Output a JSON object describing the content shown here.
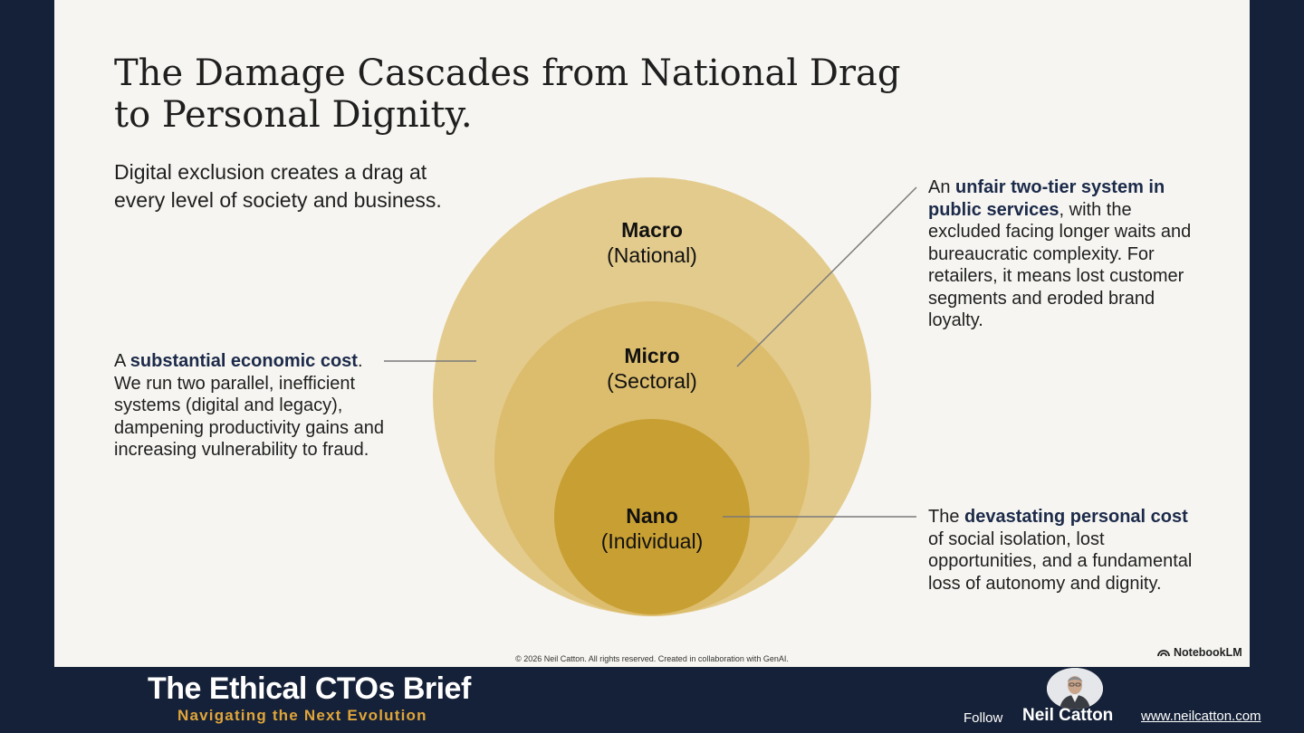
{
  "slide": {
    "title": "The Damage Cascades from National Drag to Personal Dignity.",
    "subtitle": "Digital exclusion creates a drag at every level of society and business.",
    "circles": [
      {
        "name": "Macro",
        "scope": "(National)",
        "color": "#e2c98b"
      },
      {
        "name": "Micro",
        "scope": "(Sectoral)",
        "color": "#dcbb6a"
      },
      {
        "name": "Nano",
        "scope": "(Individual)",
        "color": "#c9a133"
      }
    ],
    "notes": {
      "macro": {
        "prefix": "A ",
        "bold": "substantial economic cost",
        "suffix": ". We run two parallel, inefficient systems (digital and legacy), dampening productivity gains and increasing vulnerability to fraud."
      },
      "micro": {
        "prefix": "An ",
        "bold": "unfair two-tier system in public services",
        "suffix": ", with the excluded facing longer waits and bureaucratic complexity. For retailers, it means lost customer segments and eroded brand loyalty."
      },
      "nano": {
        "prefix": "The ",
        "bold": "devastating personal cost",
        "suffix": " of social isolation, lost opportunities, and a fundamental loss of autonomy and dignity."
      }
    },
    "copyright": "© 2026 Neil Catton. All rights reserved. Created in collaboration with GenAI.",
    "watermark": "NotebookLM"
  },
  "footer": {
    "brand_title": "The Ethical CTOs Brief",
    "brand_subtitle": "Navigating the Next Evolution",
    "follow_label": "Follow",
    "author": "Neil Catton",
    "website": "www.neilcatton.com"
  }
}
